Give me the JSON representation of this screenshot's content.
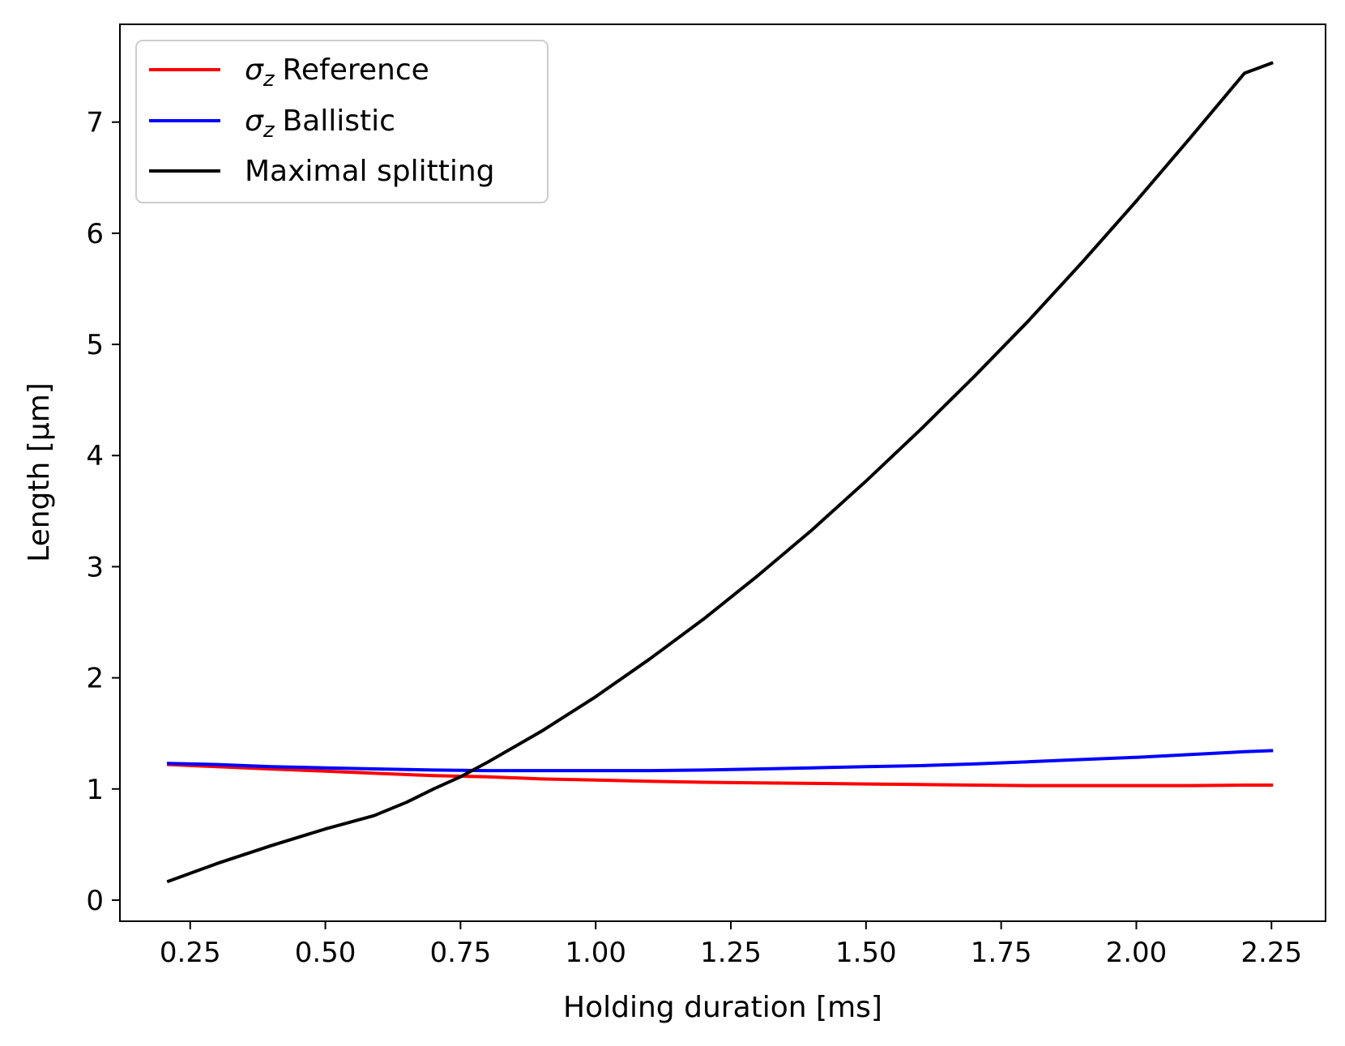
{
  "chart_data": {
    "type": "line",
    "title": "",
    "xlabel": "Holding duration [ms]",
    "ylabel": "Length [μm]",
    "xlim": [
      0.12,
      2.35
    ],
    "ylim": [
      -0.19,
      7.88
    ],
    "xticks": [
      0.25,
      0.5,
      0.75,
      1.0,
      1.25,
      1.5,
      1.75,
      2.0,
      2.25
    ],
    "xtick_labels": [
      "0.25",
      "0.50",
      "0.75",
      "1.00",
      "1.25",
      "1.50",
      "1.75",
      "2.00",
      "2.25"
    ],
    "yticks": [
      0,
      1,
      2,
      3,
      4,
      5,
      6,
      7
    ],
    "ytick_labels": [
      "0",
      "1",
      "2",
      "3",
      "4",
      "5",
      "6",
      "7"
    ],
    "grid": false,
    "legend_position": "top-left",
    "series": [
      {
        "name": "σz Reference",
        "legend_symbol": "σ",
        "legend_subscript": "z",
        "legend_text": "Reference",
        "color": "#ff0000",
        "x": [
          0.21,
          0.3,
          0.4,
          0.5,
          0.6,
          0.7,
          0.8,
          0.9,
          1.0,
          1.1,
          1.2,
          1.3,
          1.4,
          1.5,
          1.6,
          1.7,
          1.8,
          1.9,
          2.0,
          2.1,
          2.2,
          2.25
        ],
        "y": [
          1.22,
          1.2,
          1.18,
          1.16,
          1.14,
          1.12,
          1.11,
          1.09,
          1.08,
          1.07,
          1.06,
          1.055,
          1.05,
          1.045,
          1.04,
          1.035,
          1.03,
          1.03,
          1.03,
          1.03,
          1.035,
          1.035
        ]
      },
      {
        "name": "σz Ballistic",
        "legend_symbol": "σ",
        "legend_subscript": "z",
        "legend_text": "Ballistic",
        "color": "#0000ff",
        "x": [
          0.21,
          0.3,
          0.4,
          0.5,
          0.6,
          0.7,
          0.8,
          0.9,
          1.0,
          1.1,
          1.2,
          1.3,
          1.4,
          1.5,
          1.6,
          1.7,
          1.8,
          1.9,
          2.0,
          2.1,
          2.2,
          2.25
        ],
        "y": [
          1.23,
          1.22,
          1.2,
          1.19,
          1.18,
          1.17,
          1.165,
          1.165,
          1.165,
          1.165,
          1.17,
          1.18,
          1.19,
          1.2,
          1.21,
          1.225,
          1.245,
          1.265,
          1.285,
          1.31,
          1.335,
          1.345
        ]
      },
      {
        "name": "Maximal splitting",
        "legend_text": "Maximal splitting",
        "color": "#000000",
        "x": [
          0.21,
          0.3,
          0.4,
          0.5,
          0.59,
          0.65,
          0.7,
          0.75,
          0.8,
          0.9,
          1.0,
          1.1,
          1.2,
          1.3,
          1.4,
          1.5,
          1.6,
          1.7,
          1.8,
          1.9,
          2.0,
          2.1,
          2.2,
          2.25
        ],
        "y": [
          0.17,
          0.33,
          0.49,
          0.64,
          0.76,
          0.88,
          1.0,
          1.11,
          1.24,
          1.52,
          1.83,
          2.17,
          2.53,
          2.92,
          3.33,
          3.77,
          4.23,
          4.71,
          5.21,
          5.74,
          6.29,
          6.86,
          7.44,
          7.53
        ]
      }
    ]
  }
}
